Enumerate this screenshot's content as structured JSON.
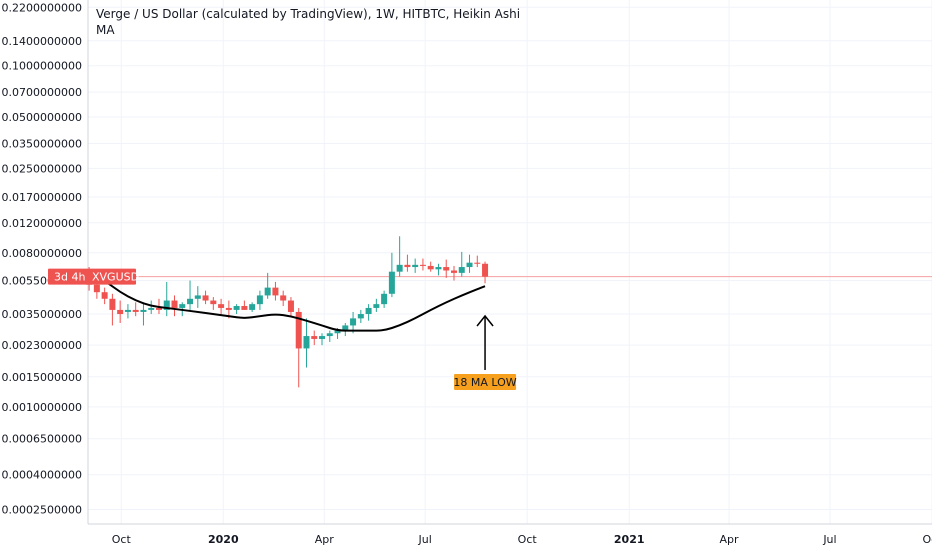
{
  "header": {
    "title": "Verge / US Dollar (calculated by TradingView), 1W, HITBTC, Heikin Ashi",
    "indicator": "MA"
  },
  "price_tag": {
    "countdown": "3d 4h",
    "symbol": "XVGUSD"
  },
  "annotation": {
    "text": "18 MA LOW"
  },
  "colors": {
    "up": "#26a69a",
    "down": "#ef5350",
    "ma": "#000000",
    "annotation_bg": "#f7a01e",
    "tag_bg": "#ef5350",
    "grid": "#f0f3fa",
    "axis_text": "#131722"
  },
  "chart_data": {
    "type": "candlestick",
    "scale": "log",
    "ylim": [
      0.00022,
      0.23
    ],
    "y_ticks": [
      "0.2200000000",
      "0.1400000000",
      "0.1000000000",
      "0.0700000000",
      "0.0500000000",
      "0.0350000000",
      "0.0250000000",
      "0.0170000000",
      "0.0120000000",
      "0.0080000000",
      "0.0055000000",
      "0.0035000000",
      "0.0023000000",
      "0.0015000000",
      "0.0010000000",
      "0.0006500000",
      "0.0004000000",
      "0.0002500000"
    ],
    "x_ticks": [
      "Oct",
      "2020",
      "Apr",
      "Jul",
      "Oct",
      "2021",
      "Apr",
      "Jul",
      "Oct"
    ],
    "x_tick_dates": [
      "2019-10-01",
      "2020-01-01",
      "2020-04-01",
      "2020-07-01",
      "2020-10-01",
      "2021-01-01",
      "2021-04-01",
      "2021-07-01",
      "2021-10-01"
    ],
    "xlim": [
      "2019-09-01",
      "2021-10-01"
    ],
    "current_price": 0.0058,
    "candles": [
      {
        "date": "2019-09-02",
        "o": 0.0057,
        "h": 0.0066,
        "l": 0.0048,
        "c": 0.0052
      },
      {
        "date": "2019-09-09",
        "o": 0.0052,
        "h": 0.0056,
        "l": 0.0043,
        "c": 0.0047
      },
      {
        "date": "2019-09-16",
        "o": 0.0047,
        "h": 0.005,
        "l": 0.004,
        "c": 0.0043
      },
      {
        "date": "2019-09-23",
        "o": 0.0043,
        "h": 0.0046,
        "l": 0.003,
        "c": 0.0037
      },
      {
        "date": "2019-09-30",
        "o": 0.0037,
        "h": 0.0042,
        "l": 0.0031,
        "c": 0.0035
      },
      {
        "date": "2019-10-07",
        "o": 0.0036,
        "h": 0.004,
        "l": 0.0033,
        "c": 0.0037
      },
      {
        "date": "2019-10-14",
        "o": 0.0037,
        "h": 0.0041,
        "l": 0.0034,
        "c": 0.0036
      },
      {
        "date": "2019-10-21",
        "o": 0.0036,
        "h": 0.0041,
        "l": 0.003,
        "c": 0.0037
      },
      {
        "date": "2019-10-28",
        "o": 0.0037,
        "h": 0.0042,
        "l": 0.0035,
        "c": 0.0038
      },
      {
        "date": "2019-11-04",
        "o": 0.0038,
        "h": 0.0043,
        "l": 0.0035,
        "c": 0.0037
      },
      {
        "date": "2019-11-11",
        "o": 0.0037,
        "h": 0.0054,
        "l": 0.0034,
        "c": 0.0042
      },
      {
        "date": "2019-11-18",
        "o": 0.0042,
        "h": 0.0045,
        "l": 0.0034,
        "c": 0.0038
      },
      {
        "date": "2019-11-25",
        "o": 0.0038,
        "h": 0.0041,
        "l": 0.0034,
        "c": 0.004
      },
      {
        "date": "2019-12-02",
        "o": 0.004,
        "h": 0.0055,
        "l": 0.0037,
        "c": 0.0043
      },
      {
        "date": "2019-12-09",
        "o": 0.0043,
        "h": 0.0051,
        "l": 0.0038,
        "c": 0.0045
      },
      {
        "date": "2019-12-16",
        "o": 0.0045,
        "h": 0.0048,
        "l": 0.004,
        "c": 0.0042
      },
      {
        "date": "2019-12-23",
        "o": 0.0042,
        "h": 0.0044,
        "l": 0.0037,
        "c": 0.004
      },
      {
        "date": "2019-12-30",
        "o": 0.004,
        "h": 0.0043,
        "l": 0.0035,
        "c": 0.0038
      },
      {
        "date": "2020-01-06",
        "o": 0.0038,
        "h": 0.0042,
        "l": 0.0033,
        "c": 0.0037
      },
      {
        "date": "2020-01-13",
        "o": 0.0037,
        "h": 0.004,
        "l": 0.0035,
        "c": 0.0039
      },
      {
        "date": "2020-01-20",
        "o": 0.0039,
        "h": 0.0042,
        "l": 0.0037,
        "c": 0.0037
      },
      {
        "date": "2020-01-27",
        "o": 0.0037,
        "h": 0.0041,
        "l": 0.0036,
        "c": 0.004
      },
      {
        "date": "2020-02-03",
        "o": 0.004,
        "h": 0.0048,
        "l": 0.0037,
        "c": 0.0045
      },
      {
        "date": "2020-02-10",
        "o": 0.0045,
        "h": 0.0061,
        "l": 0.0043,
        "c": 0.005
      },
      {
        "date": "2020-02-17",
        "o": 0.005,
        "h": 0.0054,
        "l": 0.0042,
        "c": 0.0045
      },
      {
        "date": "2020-02-24",
        "o": 0.0045,
        "h": 0.0048,
        "l": 0.0039,
        "c": 0.0042
      },
      {
        "date": "2020-03-02",
        "o": 0.0042,
        "h": 0.0044,
        "l": 0.0034,
        "c": 0.0036
      },
      {
        "date": "2020-03-09",
        "o": 0.0036,
        "h": 0.0038,
        "l": 0.0013,
        "c": 0.0022
      },
      {
        "date": "2020-03-16",
        "o": 0.0022,
        "h": 0.0033,
        "l": 0.0017,
        "c": 0.0026
      },
      {
        "date": "2020-03-23",
        "o": 0.0026,
        "h": 0.0028,
        "l": 0.0023,
        "c": 0.0025
      },
      {
        "date": "2020-03-30",
        "o": 0.0025,
        "h": 0.0027,
        "l": 0.0023,
        "c": 0.0026
      },
      {
        "date": "2020-04-06",
        "o": 0.0026,
        "h": 0.0028,
        "l": 0.0024,
        "c": 0.0027
      },
      {
        "date": "2020-04-13",
        "o": 0.0027,
        "h": 0.0029,
        "l": 0.0025,
        "c": 0.0028
      },
      {
        "date": "2020-04-20",
        "o": 0.0028,
        "h": 0.0031,
        "l": 0.0026,
        "c": 0.003
      },
      {
        "date": "2020-04-27",
        "o": 0.003,
        "h": 0.0036,
        "l": 0.0027,
        "c": 0.0033
      },
      {
        "date": "2020-05-04",
        "o": 0.0033,
        "h": 0.0037,
        "l": 0.0031,
        "c": 0.0035
      },
      {
        "date": "2020-05-11",
        "o": 0.0035,
        "h": 0.004,
        "l": 0.0032,
        "c": 0.0038
      },
      {
        "date": "2020-05-18",
        "o": 0.0038,
        "h": 0.0043,
        "l": 0.0036,
        "c": 0.004
      },
      {
        "date": "2020-05-25",
        "o": 0.004,
        "h": 0.0048,
        "l": 0.0038,
        "c": 0.0046
      },
      {
        "date": "2020-06-01",
        "o": 0.0046,
        "h": 0.008,
        "l": 0.0044,
        "c": 0.0062
      },
      {
        "date": "2020-06-08",
        "o": 0.0062,
        "h": 0.01,
        "l": 0.0058,
        "c": 0.0068
      },
      {
        "date": "2020-06-15",
        "o": 0.0068,
        "h": 0.0078,
        "l": 0.0062,
        "c": 0.0066
      },
      {
        "date": "2020-06-22",
        "o": 0.0066,
        "h": 0.0074,
        "l": 0.0061,
        "c": 0.0068
      },
      {
        "date": "2020-06-29",
        "o": 0.0068,
        "h": 0.0074,
        "l": 0.0063,
        "c": 0.0067
      },
      {
        "date": "2020-07-06",
        "o": 0.0067,
        "h": 0.0071,
        "l": 0.0062,
        "c": 0.0064
      },
      {
        "date": "2020-07-13",
        "o": 0.0064,
        "h": 0.0069,
        "l": 0.0059,
        "c": 0.0066
      },
      {
        "date": "2020-07-20",
        "o": 0.0066,
        "h": 0.0073,
        "l": 0.0057,
        "c": 0.0063
      },
      {
        "date": "2020-07-27",
        "o": 0.0063,
        "h": 0.0067,
        "l": 0.0055,
        "c": 0.0061
      },
      {
        "date": "2020-08-03",
        "o": 0.0061,
        "h": 0.0081,
        "l": 0.0058,
        "c": 0.0066
      },
      {
        "date": "2020-08-10",
        "o": 0.0066,
        "h": 0.0078,
        "l": 0.0061,
        "c": 0.007
      },
      {
        "date": "2020-08-17",
        "o": 0.007,
        "h": 0.0077,
        "l": 0.0066,
        "c": 0.0069
      },
      {
        "date": "2020-08-24",
        "o": 0.0069,
        "h": 0.0071,
        "l": 0.0053,
        "c": 0.0058
      }
    ],
    "ma": {
      "period": 18,
      "points": [
        {
          "date": "2019-09-02",
          "v": 0.006
        },
        {
          "date": "2019-09-16",
          "v": 0.0055
        },
        {
          "date": "2019-09-30",
          "v": 0.0047
        },
        {
          "date": "2019-10-14",
          "v": 0.0042
        },
        {
          "date": "2019-10-28",
          "v": 0.0039
        },
        {
          "date": "2019-11-11",
          "v": 0.0038
        },
        {
          "date": "2019-11-25",
          "v": 0.0037
        },
        {
          "date": "2019-12-09",
          "v": 0.0036
        },
        {
          "date": "2019-12-23",
          "v": 0.0035
        },
        {
          "date": "2020-01-06",
          "v": 0.0034
        },
        {
          "date": "2020-01-20",
          "v": 0.0033
        },
        {
          "date": "2020-02-03",
          "v": 0.0034
        },
        {
          "date": "2020-02-17",
          "v": 0.0035
        },
        {
          "date": "2020-03-02",
          "v": 0.0034
        },
        {
          "date": "2020-03-16",
          "v": 0.0032
        },
        {
          "date": "2020-03-30",
          "v": 0.003
        },
        {
          "date": "2020-04-13",
          "v": 0.0028
        },
        {
          "date": "2020-04-27",
          "v": 0.0028
        },
        {
          "date": "2020-05-11",
          "v": 0.0028
        },
        {
          "date": "2020-05-25",
          "v": 0.0028
        },
        {
          "date": "2020-06-08",
          "v": 0.003
        },
        {
          "date": "2020-06-22",
          "v": 0.0033
        },
        {
          "date": "2020-07-06",
          "v": 0.0037
        },
        {
          "date": "2020-07-20",
          "v": 0.0041
        },
        {
          "date": "2020-08-03",
          "v": 0.0045
        },
        {
          "date": "2020-08-17",
          "v": 0.0049
        },
        {
          "date": "2020-08-24",
          "v": 0.0051
        }
      ]
    }
  }
}
